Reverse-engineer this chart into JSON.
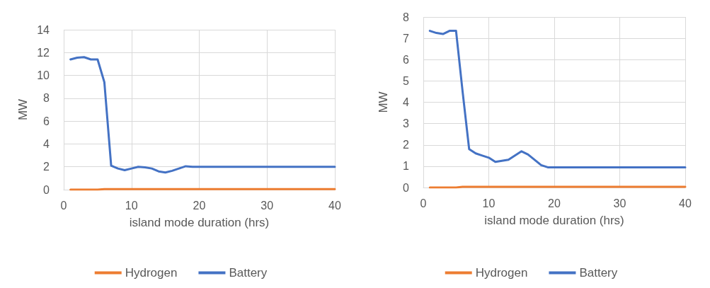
{
  "chart_data": [
    {
      "type": "line",
      "xlabel": "island mode duration (hrs)",
      "ylabel": "MW",
      "xlim": [
        0,
        40
      ],
      "xticks": [
        0,
        10,
        20,
        30,
        40
      ],
      "ylim": [
        0,
        14
      ],
      "yticks": [
        0,
        2,
        4,
        6,
        8,
        10,
        12,
        14
      ],
      "grid": true,
      "legend": "bottom",
      "marker": "none",
      "line_style": "solid",
      "series": [
        {
          "name": "Hydrogen",
          "color": "#ed7d31",
          "x": [
            1,
            5,
            6,
            40
          ],
          "values": [
            0,
            0,
            0.05,
            0.05
          ]
        },
        {
          "name": "Battery",
          "color": "#4472c4",
          "x": [
            1,
            2,
            3,
            4,
            5,
            6,
            7,
            8,
            9,
            10,
            11,
            12,
            13,
            14,
            15,
            16,
            17,
            18,
            19,
            40
          ],
          "values": [
            11.4,
            11.55,
            11.6,
            11.4,
            11.4,
            9.4,
            2.1,
            1.85,
            1.7,
            1.85,
            2.0,
            1.95,
            1.85,
            1.6,
            1.5,
            1.65,
            1.85,
            2.05,
            2.0,
            2.0
          ]
        }
      ]
    },
    {
      "type": "line",
      "xlabel": "island mode duration (hrs)",
      "ylabel": "MW",
      "xlim": [
        0,
        40
      ],
      "xticks": [
        0,
        10,
        20,
        30,
        40
      ],
      "ylim": [
        0,
        8
      ],
      "yticks": [
        0,
        1,
        2,
        3,
        4,
        5,
        6,
        7,
        8
      ],
      "grid": true,
      "legend": "bottom",
      "marker": "none",
      "line_style": "solid",
      "series": [
        {
          "name": "Hydrogen",
          "color": "#ed7d31",
          "x": [
            1,
            5,
            6,
            40
          ],
          "values": [
            0,
            0,
            0.03,
            0.03
          ]
        },
        {
          "name": "Battery",
          "color": "#4472c4",
          "x": [
            1,
            2,
            3,
            4,
            5,
            6,
            7,
            8,
            9,
            10,
            11,
            12,
            13,
            14,
            15,
            16,
            17,
            18,
            19,
            40
          ],
          "values": [
            7.35,
            7.25,
            7.2,
            7.35,
            7.35,
            4.5,
            1.8,
            1.6,
            1.5,
            1.4,
            1.2,
            1.25,
            1.3,
            1.5,
            1.7,
            1.55,
            1.3,
            1.05,
            0.95,
            0.95
          ]
        }
      ]
    }
  ]
}
